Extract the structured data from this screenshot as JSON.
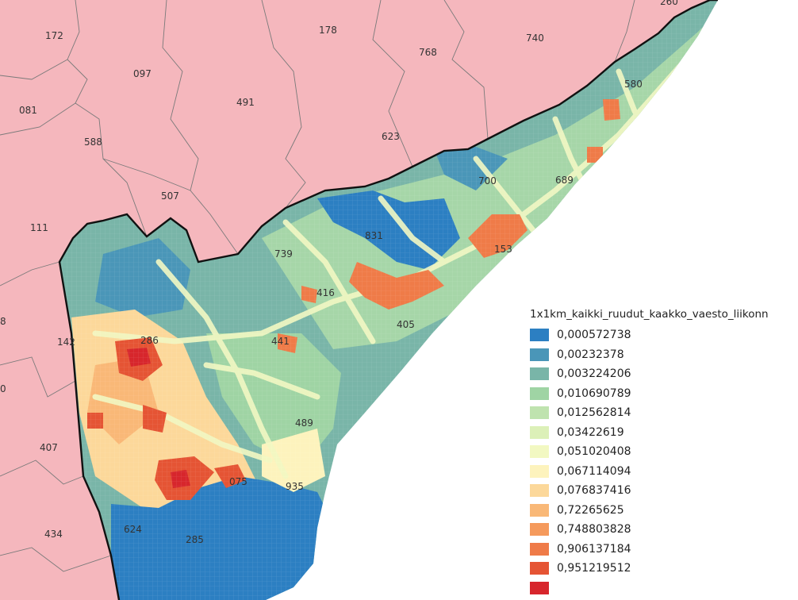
{
  "municipality_codes": [
    "178",
    "740",
    "768",
    "172",
    "097",
    "491",
    "081",
    "588",
    "623",
    "507",
    "111",
    "142",
    "407",
    "434",
    "580",
    "700",
    "689",
    "831",
    "153",
    "739",
    "416",
    "405",
    "441",
    "286",
    "489",
    "075",
    "935",
    "624",
    "285",
    "260",
    "8",
    "0"
  ],
  "legend": {
    "title": "1x1km_kaikki_ruudut_kaakko_vaesto_liikonn",
    "classes": [
      {
        "label": "0,000572738",
        "color": "#2c7fc2"
      },
      {
        "label": "0,00232378",
        "color": "#4a96b8"
      },
      {
        "label": "0,003224206",
        "color": "#79b5a8"
      },
      {
        "label": "0,010690789",
        "color": "#9fd4a4"
      },
      {
        "label": "0,012562814",
        "color": "#bfe3af"
      },
      {
        "label": "0,03422619",
        "color": "#dcf0b8"
      },
      {
        "label": "0,051020408",
        "color": "#f2f8c2"
      },
      {
        "label": "0,067114094",
        "color": "#fdf3bd"
      },
      {
        "label": "0,076837416",
        "color": "#fcd89a"
      },
      {
        "label": "0,72265625",
        "color": "#f9b877"
      },
      {
        "label": "0,748803828",
        "color": "#f59a5c"
      },
      {
        "label": "0,906137184",
        "color": "#ef7b48"
      },
      {
        "label": "0,951219512",
        "color": "#e55434"
      },
      {
        "label": "",
        "color": "#d7262c"
      }
    ]
  },
  "colors": {
    "neighbor_region": "#f5b7bd",
    "region_border": "#7a7a7a",
    "coastline": "#111111",
    "sea": "#ffffff"
  }
}
